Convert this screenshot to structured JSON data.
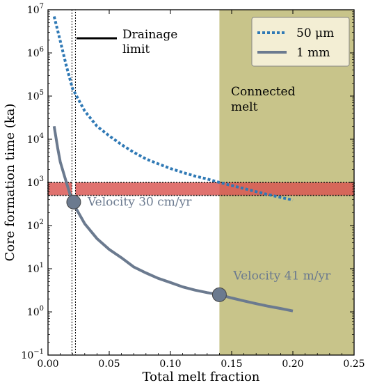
{
  "chart_data": {
    "type": "line",
    "xlabel": "Total melt fraction",
    "ylabel": "Core formation time (ka)",
    "xlim": [
      0.0,
      0.25
    ],
    "ylim_log10": [
      -1,
      7
    ],
    "y_scale": "log",
    "x_ticks": [
      {
        "value": 0.0,
        "label": "0.00"
      },
      {
        "value": 0.05,
        "label": "0.05"
      },
      {
        "value": 0.1,
        "label": "0.10"
      },
      {
        "value": 0.15,
        "label": "0.15"
      },
      {
        "value": 0.2,
        "label": "0.20"
      },
      {
        "value": 0.25,
        "label": "0.25"
      }
    ],
    "y_ticks": [
      {
        "exp": -1,
        "base": "10",
        "sup": "−1"
      },
      {
        "exp": 0,
        "base": "10",
        "sup": "0"
      },
      {
        "exp": 1,
        "base": "10",
        "sup": "1"
      },
      {
        "exp": 2,
        "base": "10",
        "sup": "2"
      },
      {
        "exp": 3,
        "base": "10",
        "sup": "3"
      },
      {
        "exp": 4,
        "base": "10",
        "sup": "4"
      },
      {
        "exp": 5,
        "base": "10",
        "sup": "5"
      },
      {
        "exp": 6,
        "base": "10",
        "sup": "6"
      },
      {
        "exp": 7,
        "base": "10",
        "sup": "7"
      }
    ],
    "series": [
      {
        "name": "50 μm",
        "style": "dotted",
        "color": "#2f79b5",
        "points": [
          [
            0.005,
            7000000
          ],
          [
            0.008,
            3200000
          ],
          [
            0.01,
            1900000
          ],
          [
            0.015,
            500000
          ],
          [
            0.02,
            150000
          ],
          [
            0.03,
            45000
          ],
          [
            0.04,
            20000
          ],
          [
            0.05,
            12000
          ],
          [
            0.06,
            7500
          ],
          [
            0.07,
            5000
          ],
          [
            0.08,
            3500
          ],
          [
            0.09,
            2700
          ],
          [
            0.1,
            2100
          ],
          [
            0.11,
            1700
          ],
          [
            0.12,
            1400
          ],
          [
            0.13,
            1200
          ],
          [
            0.14,
            1000
          ],
          [
            0.15,
            850
          ],
          [
            0.16,
            720
          ],
          [
            0.17,
            610
          ],
          [
            0.18,
            520
          ],
          [
            0.19,
            450
          ],
          [
            0.2,
            390
          ]
        ]
      },
      {
        "name": "1 mm",
        "style": "solid",
        "color": "#6b7a8f",
        "points": [
          [
            0.005,
            20000
          ],
          [
            0.008,
            6000
          ],
          [
            0.01,
            3000
          ],
          [
            0.015,
            1000
          ],
          [
            0.02,
            350
          ],
          [
            0.03,
            110
          ],
          [
            0.04,
            50
          ],
          [
            0.05,
            28
          ],
          [
            0.06,
            18
          ],
          [
            0.07,
            11
          ],
          [
            0.08,
            8
          ],
          [
            0.09,
            6
          ],
          [
            0.1,
            4.8
          ],
          [
            0.11,
            3.8
          ],
          [
            0.12,
            3.2
          ],
          [
            0.13,
            2.8
          ],
          [
            0.14,
            2.5
          ],
          [
            0.15,
            2.1
          ],
          [
            0.16,
            1.8
          ],
          [
            0.17,
            1.55
          ],
          [
            0.18,
            1.35
          ],
          [
            0.19,
            1.2
          ],
          [
            0.2,
            1.05
          ]
        ]
      }
    ],
    "markers": [
      {
        "x": 0.021,
        "y": 350,
        "label": "Velocity 30 cm/yr"
      },
      {
        "x": 0.14,
        "y": 2.5,
        "label": "Velocity 41 m/yr"
      }
    ],
    "drainage_limit": {
      "x": 0.021,
      "label_lines": [
        "Drainage",
        "limit"
      ]
    },
    "connected_melt": {
      "x_from": 0.14,
      "x_to": 0.25,
      "label_lines": [
        "Connected",
        "melt"
      ],
      "color": "#c8c48a"
    },
    "target_band": {
      "y_from": 500,
      "y_to": 1000,
      "color": "#d9534f"
    },
    "legend": {
      "position": "top-right"
    }
  }
}
